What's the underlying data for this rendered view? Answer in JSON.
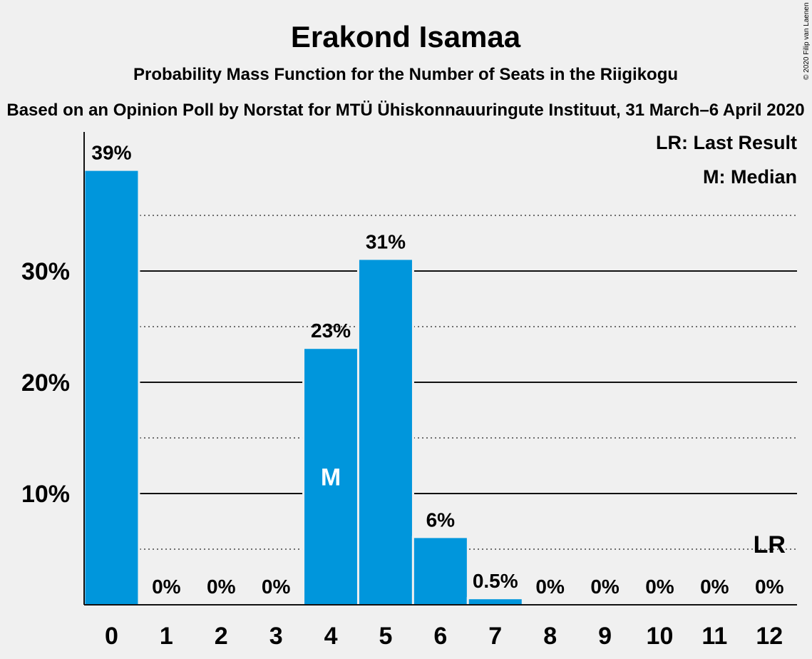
{
  "chart_data": {
    "type": "bar",
    "title": "Erakond Isamaa",
    "subtitle": "Probability Mass Function for the Number of Seats in the Riigikogu",
    "subtitle2": "Based on an Opinion Poll by Norstat for MTÜ Ühiskonnauuringute Instituut, 31 March–6 April 2020",
    "copyright": "© 2020 Filip van Laenen",
    "categories": [
      "0",
      "1",
      "2",
      "3",
      "4",
      "5",
      "6",
      "7",
      "8",
      "9",
      "10",
      "11",
      "12"
    ],
    "values": [
      39,
      0,
      0,
      0,
      23,
      31,
      6,
      0.5,
      0,
      0,
      0,
      0,
      0
    ],
    "value_labels": [
      "39%",
      "0%",
      "0%",
      "0%",
      "23%",
      "31%",
      "6%",
      "0.5%",
      "0%",
      "0%",
      "0%",
      "0%",
      "0%"
    ],
    "ylim": [
      0,
      42.5
    ],
    "y_ticks": [
      10,
      20,
      30
    ],
    "y_tick_labels": [
      "10%",
      "20%",
      "30%"
    ],
    "minor_gridlines": [
      5,
      15,
      25,
      35
    ],
    "median_index": 4,
    "median_marker": "M",
    "last_result_index": 12,
    "last_result_marker": "LR",
    "legend": [
      "LR: Last Result",
      "M: Median"
    ],
    "legend_position": "top-right",
    "bar_color": "#0096dc",
    "background_color": "#f0f0f0"
  }
}
